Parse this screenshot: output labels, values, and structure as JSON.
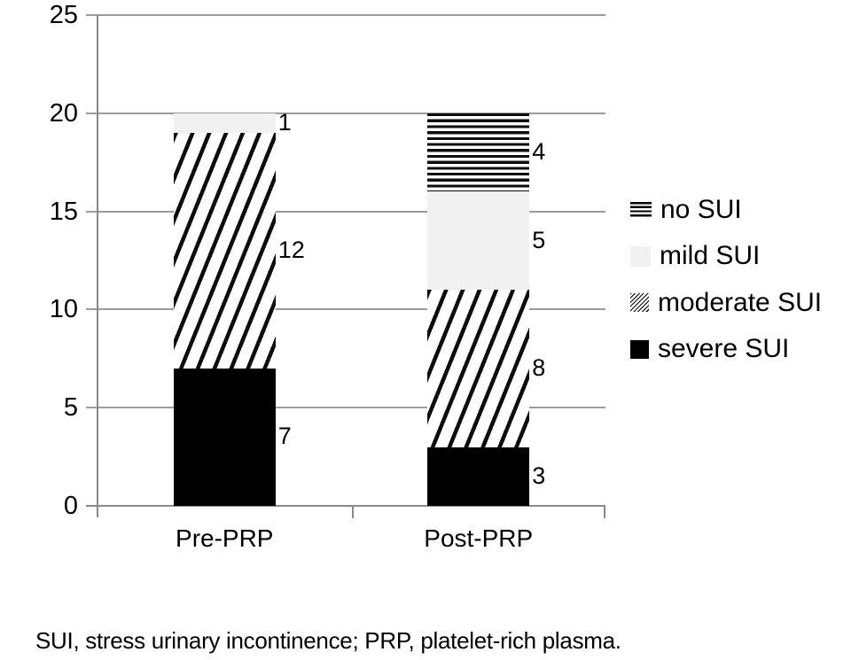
{
  "chart_data": {
    "type": "bar",
    "variant": "stacked",
    "title": "",
    "xlabel": "",
    "ylabel": "",
    "categories": [
      "Pre-PRP",
      "Post-PRP"
    ],
    "series": [
      {
        "name": "severe SUI",
        "pattern": "solid-black",
        "values": [
          7,
          3
        ]
      },
      {
        "name": "moderate SUI",
        "pattern": "diagonal-hatch",
        "values": [
          12,
          8
        ]
      },
      {
        "name": "mild SUI",
        "pattern": "light-gray",
        "values": [
          1,
          5
        ]
      },
      {
        "name": "no SUI",
        "pattern": "horizontal-stripes",
        "values": [
          0,
          4
        ]
      }
    ],
    "data_labels_shown": true,
    "ylim": [
      0,
      25
    ],
    "yticks": [
      0,
      5,
      10,
      15,
      20,
      25
    ],
    "grid": true,
    "legend": {
      "position": "right",
      "entries": [
        {
          "label": "no SUI",
          "pattern": "horizontal-stripes"
        },
        {
          "label": "mild SUI",
          "pattern": "light-gray"
        },
        {
          "label": "moderate SUI",
          "pattern": "diagonal-hatch"
        },
        {
          "label": "severe SUI",
          "pattern": "solid-black"
        }
      ]
    },
    "colors": {
      "bar_black": "#000000",
      "bar_light_gray": "#f1f1f1",
      "hatch_line": "#0d0d0d",
      "gridline": "#9c9c9c",
      "axis": "#8a8a8a",
      "text": "#000000"
    }
  },
  "footer": {
    "text": "SUI, stress urinary incontinence; PRP, platelet-rich plasma."
  }
}
